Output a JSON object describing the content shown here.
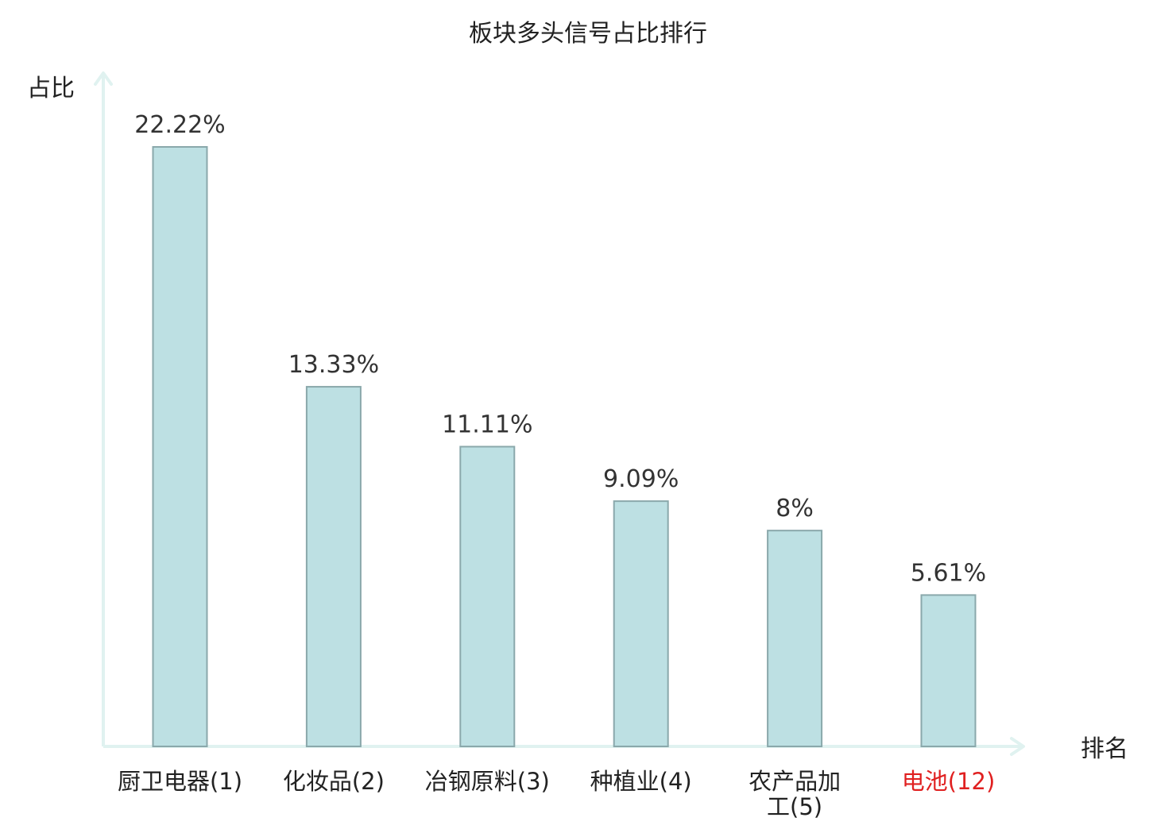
{
  "chart_data": {
    "type": "bar",
    "title": "板块多头信号占比排行",
    "ylabel": "占比",
    "xlabel": "排名",
    "categories": [
      "厨卫电器(1)",
      "化妆品(2)",
      "冶钢原料(3)",
      "种植业(4)",
      "农产品加工(5)",
      "电池(12)"
    ],
    "category_lines": [
      [
        "厨卫电器(1)"
      ],
      [
        "化妆品(2)"
      ],
      [
        "冶钢原料(3)"
      ],
      [
        "种植业(4)"
      ],
      [
        "农产品加",
        "工(5)"
      ],
      [
        "电池(12)"
      ]
    ],
    "values": [
      22.22,
      13.33,
      11.11,
      9.09,
      8,
      5.61
    ],
    "value_labels": [
      "22.22%",
      "13.33%",
      "11.11%",
      "9.09%",
      "8%",
      "5.61%"
    ],
    "highlight_index": 5,
    "ylim": [
      0,
      25
    ],
    "grid": false,
    "legend": "none",
    "colors": {
      "bar_fill": "#bde0e3",
      "bar_stroke": "#8aa8ab",
      "axis": "#e0f2f0",
      "text": "#333333",
      "highlight_text": "#e02020"
    }
  }
}
